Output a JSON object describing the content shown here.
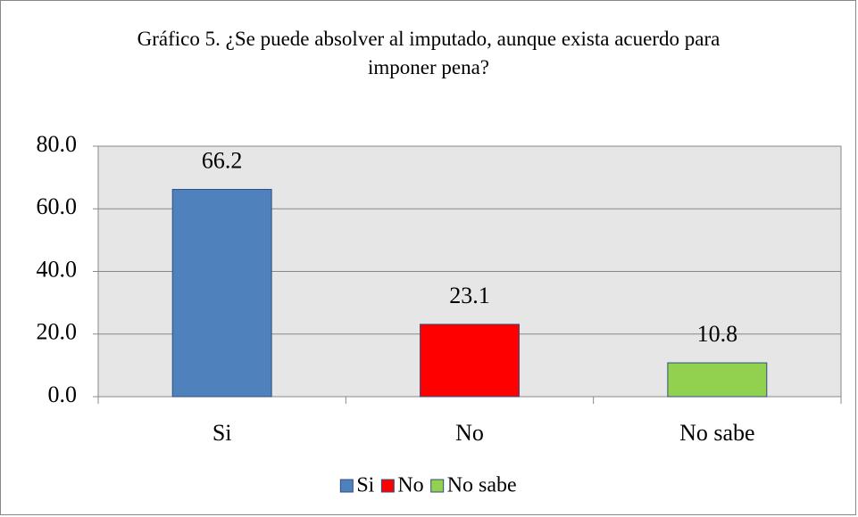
{
  "chart_data": {
    "type": "bar",
    "title": "Gráfico 5. ¿Se puede absolver al imputado, aunque exista acuerdo para imponer pena?",
    "categories": [
      "Si",
      "No",
      "No sabe"
    ],
    "values": [
      66.2,
      23.1,
      10.8
    ],
    "colors": [
      "#4f81bd",
      "#ff0000",
      "#92d050"
    ],
    "ylim": [
      0,
      80
    ],
    "yticks": [
      {
        "value": 0,
        "label": "0.0"
      },
      {
        "value": 20,
        "label": "20.0"
      },
      {
        "value": 40,
        "label": "40.0"
      },
      {
        "value": 60,
        "label": "60.0"
      },
      {
        "value": 80,
        "label": "80.0"
      }
    ],
    "grid": true,
    "legend": "bottom"
  }
}
